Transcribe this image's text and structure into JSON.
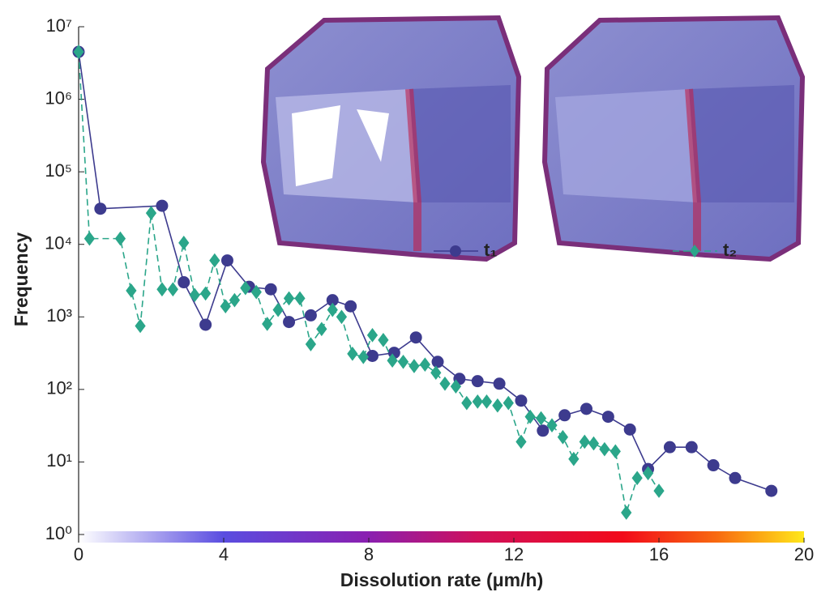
{
  "chart_data": {
    "type": "line",
    "xlabel": "Dissolution rate (μm/h)",
    "ylabel": "Frequency",
    "xlim": [
      0,
      20
    ],
    "xticks": [
      0,
      4,
      8,
      12,
      16,
      20
    ],
    "ylim": [
      1,
      10000000
    ],
    "yscale": "log",
    "yticks": [
      {
        "value": 1,
        "label": "10⁰"
      },
      {
        "value": 10,
        "label": "10¹"
      },
      {
        "value": 100,
        "label": "10²"
      },
      {
        "value": 1000,
        "label": "10³"
      },
      {
        "value": 10000,
        "label": "10⁴"
      },
      {
        "value": 100000,
        "label": "10⁵"
      },
      {
        "value": 1000000,
        "label": "10⁶"
      },
      {
        "value": 10000000,
        "label": "10⁷"
      }
    ],
    "grid": false,
    "legend": "upper right",
    "series": [
      {
        "name": "t₁",
        "color": "#3d3b8e",
        "marker": "circle",
        "dash": false,
        "x": [
          0,
          0.6,
          2.3,
          2.9,
          3.5,
          4.1,
          4.7,
          5.3,
          5.8,
          6.4,
          7.0,
          7.5,
          8.1,
          8.7,
          9.3,
          9.9,
          10.5,
          11.0,
          11.6,
          12.2,
          12.8,
          13.4,
          14.0,
          14.6,
          15.2,
          15.7,
          16.3,
          16.9,
          17.5,
          18.1,
          19.1
        ],
        "values": [
          4500000,
          31000,
          34000,
          3000,
          780,
          6000,
          2600,
          2400,
          850,
          1050,
          1700,
          1400,
          290,
          320,
          520,
          240,
          140,
          130,
          120,
          70,
          27,
          44,
          54,
          42,
          28,
          8,
          16,
          16,
          9,
          6,
          4
        ]
      },
      {
        "name": "t₂",
        "color": "#2ba68a",
        "marker": "diamond",
        "dash": true,
        "x": [
          0,
          0.3,
          1.15,
          1.45,
          1.7,
          2.0,
          2.3,
          2.6,
          2.9,
          3.2,
          3.5,
          3.75,
          4.05,
          4.3,
          4.6,
          4.9,
          5.2,
          5.5,
          5.8,
          6.1,
          6.4,
          6.7,
          7.0,
          7.25,
          7.55,
          7.85,
          8.1,
          8.4,
          8.65,
          8.95,
          9.25,
          9.55,
          9.85,
          10.1,
          10.4,
          10.7,
          11.0,
          11.25,
          11.55,
          11.85,
          12.2,
          12.45,
          12.75,
          13.05,
          13.35,
          13.65,
          13.95,
          14.2,
          14.5,
          14.8,
          15.1,
          15.4,
          15.7,
          16.0
        ],
        "values": [
          4500000,
          12000,
          12000,
          2300,
          750,
          27000,
          2400,
          2400,
          10500,
          2000,
          2100,
          6000,
          1400,
          1700,
          2500,
          2200,
          800,
          1250,
          1800,
          1800,
          420,
          680,
          1250,
          1000,
          310,
          280,
          560,
          480,
          250,
          240,
          210,
          220,
          170,
          120,
          110,
          65,
          68,
          68,
          60,
          65,
          19,
          42,
          40,
          32,
          22,
          11,
          19,
          18,
          15,
          14,
          2,
          6,
          7,
          4
        ]
      }
    ]
  }
}
